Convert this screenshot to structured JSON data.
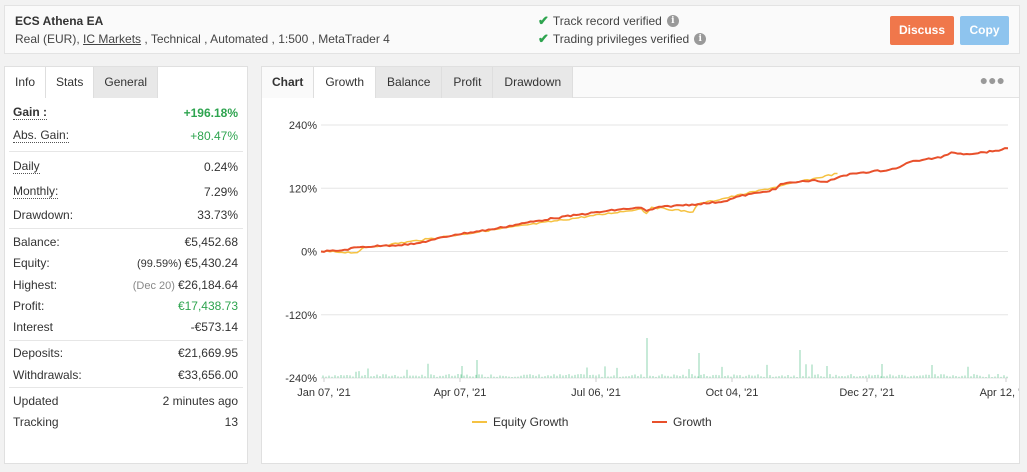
{
  "header": {
    "title": "ECS Athena EA",
    "account_type": "Real (EUR), ",
    "broker": "IC Markets",
    "details": " , Technical , Automated , 1:500 , MetaTrader 4",
    "verified_track": "Track record verified",
    "verified_trading": "Trading privileges verified",
    "discuss_label": "Discuss",
    "copy_label": "Copy"
  },
  "left_tabs": [
    "Info",
    "Stats",
    "General"
  ],
  "stats": {
    "gain_label": "Gain :",
    "gain": "+196.18%",
    "abs_gain_label": "Abs. Gain:",
    "abs_gain": "+80.47%",
    "daily_label": "Daily",
    "daily": "0.24%",
    "monthly_label": "Monthly:",
    "monthly": "7.29%",
    "drawdown_label": "Drawdown:",
    "drawdown": "33.73%",
    "balance_label": "Balance:",
    "balance": "€5,452.68",
    "equity_label": "Equity:",
    "equity_pct": "(99.59%)",
    "equity": "€5,430.24",
    "highest_label": "Highest:",
    "highest_date": "(Dec 20)",
    "highest": "€26,184.64",
    "profit_label": "Profit:",
    "profit": "€17,438.73",
    "interest_label": "Interest",
    "interest": "-€573.14",
    "deposits_label": "Deposits:",
    "deposits": "€21,669.95",
    "withdrawals_label": "Withdrawals:",
    "withdrawals": "€33,656.00",
    "updated_label": "Updated",
    "updated": "2 minutes ago",
    "tracking_label": "Tracking",
    "tracking": "13"
  },
  "chart_tabs": {
    "label": "Chart",
    "items": [
      "Growth",
      "Balance",
      "Profit",
      "Drawdown"
    ]
  },
  "colors": {
    "growth": "#e8502b",
    "equity": "#f5c242",
    "volume": "#8fd6b0",
    "discuss": "#f0774b",
    "copy": "#8ec4ee",
    "gain": "#2ea44f"
  },
  "chart_data": {
    "type": "line",
    "title": "",
    "ylim": [
      -240,
      240
    ],
    "y_ticks": [
      "240%",
      "120%",
      "0%",
      "-120%",
      "-240%"
    ],
    "x_ticks": [
      "Jan 07, '21",
      "Apr 07, '21",
      "Jul 06, '21",
      "Oct 04, '21",
      "Dec 27, '21",
      "Apr 12, '22"
    ],
    "series": [
      {
        "name": "Growth",
        "points": [
          [
            0,
            0
          ],
          [
            0.04,
            2
          ],
          [
            0.07,
            8
          ],
          [
            0.12,
            11
          ],
          [
            0.18,
            14
          ],
          [
            0.22,
            23
          ],
          [
            0.26,
            32
          ],
          [
            0.33,
            42
          ],
          [
            0.4,
            55
          ],
          [
            0.45,
            63
          ],
          [
            0.5,
            70
          ],
          [
            0.58,
            80
          ],
          [
            0.62,
            83
          ],
          [
            0.63,
            77
          ],
          [
            0.66,
            85
          ],
          [
            0.73,
            90
          ],
          [
            0.78,
            95
          ],
          [
            0.81,
            105
          ],
          [
            0.85,
            112
          ],
          [
            0.88,
            118
          ],
          [
            0.89,
            128
          ],
          [
            0.95,
            135
          ],
          [
            0.98,
            132
          ],
          [
            1.0,
            140
          ],
          [
            1.03,
            148
          ],
          [
            1.05,
            150
          ],
          [
            1.1,
            155
          ],
          [
            1.12,
            160
          ],
          [
            1.14,
            170
          ],
          [
            1.17,
            175
          ],
          [
            1.2,
            178
          ],
          [
            1.22,
            188
          ],
          [
            1.25,
            185
          ],
          [
            1.3,
            190
          ],
          [
            1.33,
            196
          ]
        ]
      },
      {
        "name": "Equity Growth",
        "points": [
          [
            0,
            0
          ],
          [
            0.07,
            -2
          ],
          [
            0.08,
            6
          ],
          [
            0.62,
            81
          ],
          [
            0.63,
            72
          ],
          [
            0.64,
            84
          ],
          [
            0.72,
            75
          ],
          [
            0.73,
            90
          ],
          [
            1.0,
            148
          ]
        ]
      }
    ],
    "x_range": [
      0,
      1.33
    ]
  }
}
